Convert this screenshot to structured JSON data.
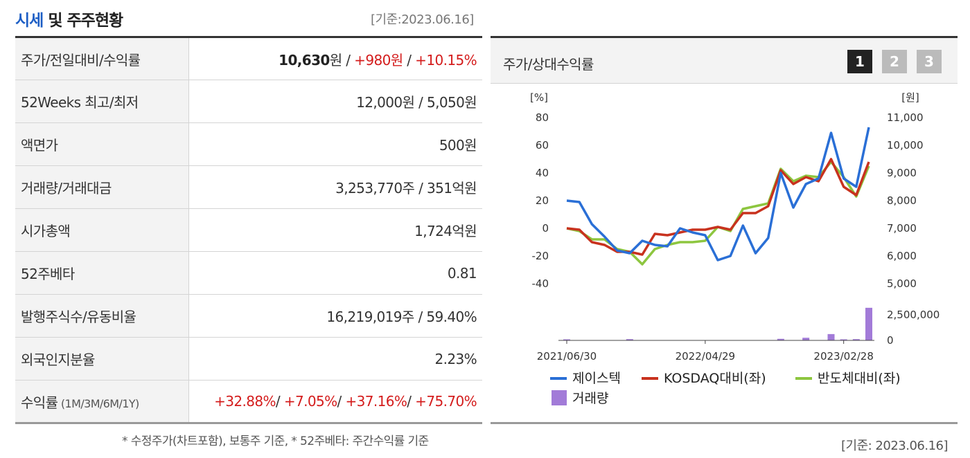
{
  "header": {
    "title_blue": "시세",
    "title_rest": " 및 주주현황",
    "base_date": "[기준:2023.06.16]"
  },
  "info_table": {
    "rows": [
      {
        "label": "주가/전일대비/수익률",
        "parts": [
          {
            "text": "10,630",
            "style": "b"
          },
          {
            "text": "원 / ",
            "style": ""
          },
          {
            "text": "+980원",
            "style": "red"
          },
          {
            "text": " / ",
            "style": ""
          },
          {
            "text": "+10.15%",
            "style": "red"
          }
        ]
      },
      {
        "label": "52Weeks 최고/최저",
        "parts": [
          {
            "text": "12,000원 / 5,050원",
            "style": ""
          }
        ]
      },
      {
        "label": "액면가",
        "parts": [
          {
            "text": "500원",
            "style": ""
          }
        ]
      },
      {
        "label": "거래량/거래대금",
        "parts": [
          {
            "text": "3,253,770주 / 351억원",
            "style": ""
          }
        ]
      },
      {
        "label": "시가총액",
        "parts": [
          {
            "text": "1,724억원",
            "style": ""
          }
        ]
      },
      {
        "label": "52주베타",
        "parts": [
          {
            "text": "0.81",
            "style": ""
          }
        ]
      },
      {
        "label": "발행주식수/유동비율",
        "parts": [
          {
            "text": "16,219,019주 / 59.40%",
            "style": ""
          }
        ]
      },
      {
        "label": "외국인지분율",
        "parts": [
          {
            "text": "2.23%",
            "style": ""
          }
        ]
      },
      {
        "label": "수익률",
        "label_small": " (1M/3M/6M/1Y)",
        "parts": [
          {
            "text": "+32.88%",
            "style": "red"
          },
          {
            "text": "/ ",
            "style": ""
          },
          {
            "text": "+7.05%",
            "style": "red"
          },
          {
            "text": "/ ",
            "style": ""
          },
          {
            "text": "+37.16%",
            "style": "red"
          },
          {
            "text": "/ ",
            "style": ""
          },
          {
            "text": "+75.70%",
            "style": "red"
          }
        ]
      }
    ]
  },
  "footnote": "* 수정주가(차트포함), 보통주 기준, * 52주베타: 주간수익률 기준",
  "chart_panel": {
    "title": "주가/상대수익률",
    "tabs": [
      "1",
      "2",
      "3"
    ],
    "active_tab": "1",
    "base_date": "[기준: 2023.06.16]"
  },
  "chart_data": {
    "type": "line",
    "left_axis": {
      "unit": "[%]",
      "ticks": [
        "80",
        "60",
        "40",
        "20",
        "0",
        "-20",
        "-40"
      ],
      "range": [
        -40,
        80
      ]
    },
    "right_axis": {
      "unit": "[원]",
      "ticks": [
        "11,000",
        "10,000",
        "9,000",
        "8,000",
        "7,000",
        "6,000",
        "5,000"
      ],
      "range": [
        5000,
        11000
      ]
    },
    "volume_axis": {
      "ticks": [
        "2,500,000",
        "0"
      ],
      "range": [
        0,
        2500000
      ]
    },
    "x_labels": [
      "2021/06/30",
      "2022/04/29",
      "2023/02/28"
    ],
    "x_label_index": [
      0,
      11,
      22
    ],
    "series": [
      {
        "name": "제이스텍",
        "color": "#2a6fd6",
        "values": [
          20,
          19,
          3,
          -6,
          -16,
          -18,
          -9,
          -12,
          -13,
          0,
          -3,
          -5,
          -23,
          -20,
          2,
          -18,
          -7,
          40,
          15,
          32,
          36,
          69,
          36,
          30,
          73
        ]
      },
      {
        "name": "KOSDAQ대비(좌)",
        "color": "#c8321e",
        "values": [
          0,
          -1,
          -10,
          -12,
          -17,
          -17,
          -19,
          -4,
          -5,
          -3,
          -1,
          -1,
          1,
          -1,
          11,
          11,
          16,
          42,
          32,
          37,
          34,
          50,
          30,
          24,
          48
        ]
      },
      {
        "name": "반도체대비(좌)",
        "color": "#8dc63f",
        "values": [
          0,
          -2,
          -8,
          -8,
          -15,
          -17,
          -26,
          -15,
          -12,
          -10,
          -10,
          -9,
          1,
          -2,
          14,
          16,
          18,
          43,
          34,
          38,
          37,
          48,
          37,
          23,
          45
        ]
      }
    ],
    "volume": {
      "name": "거래량",
      "color": "#a27bd8",
      "values": [
        100000,
        0,
        0,
        0,
        0,
        120000,
        0,
        0,
        0,
        0,
        0,
        0,
        0,
        0,
        0,
        0,
        0,
        150000,
        0,
        250000,
        0,
        600000,
        100000,
        120000,
        3100000
      ]
    }
  }
}
